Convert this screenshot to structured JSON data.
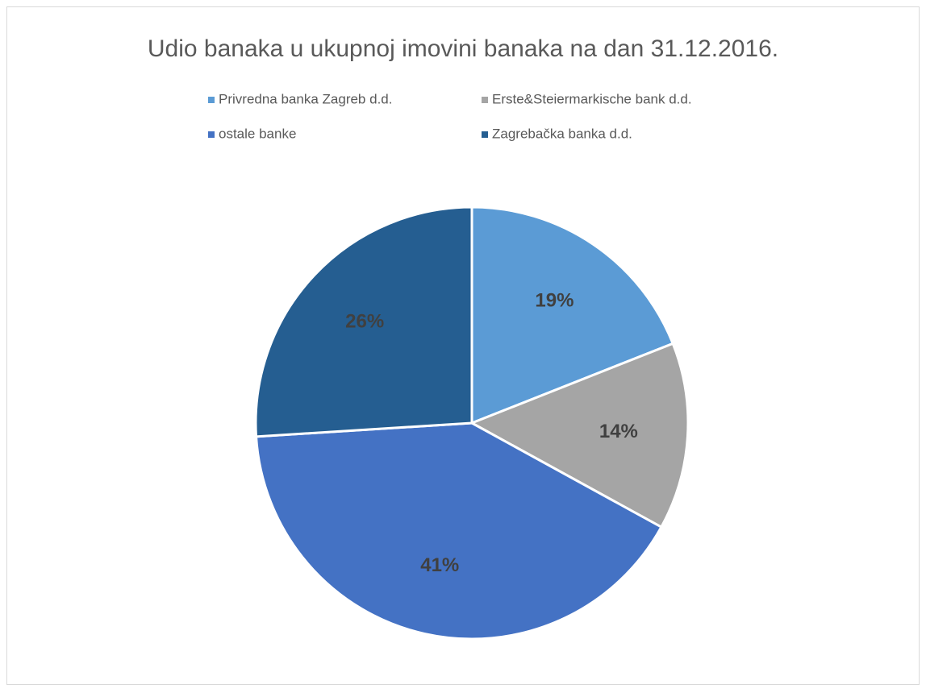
{
  "chart_data": {
    "type": "pie",
    "title": "Udio banaka u ukupnoj imovini banaka na dan 31.12.2016.",
    "categories": [
      "Privredna banka Zagreb d.d.",
      "Erste&Steiermarkische bank d.d.",
      "ostale banke",
      "Zagrebačka banka d.d."
    ],
    "values": [
      19,
      14,
      41,
      26
    ],
    "value_labels": [
      "19%",
      "14%",
      "41%",
      "26%"
    ],
    "colors": [
      "#5b9bd5",
      "#a5a5a5",
      "#4472c4",
      "#255e91"
    ]
  }
}
